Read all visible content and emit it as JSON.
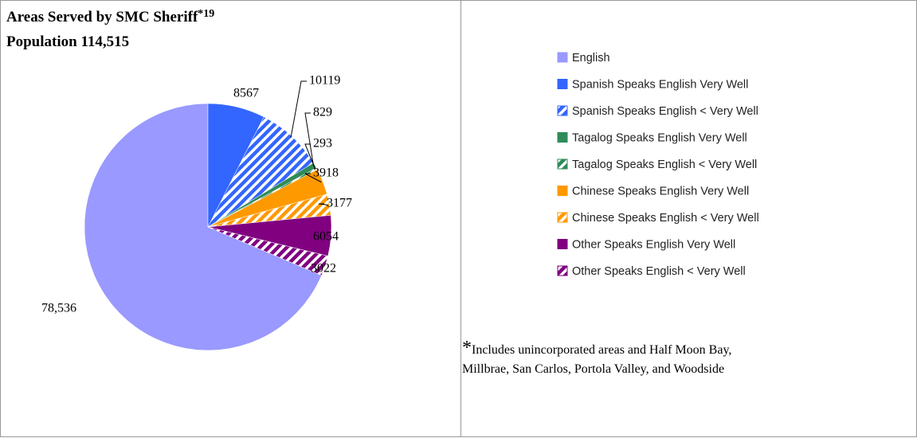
{
  "chart_data": {
    "type": "pie",
    "title": "Areas Served by SMC Sheriff",
    "title_superscript": "*19",
    "subtitle": "Population 114,515",
    "categories": [
      "English",
      "Spanish Speaks English Very Well",
      "Spanish Speaks English < Very Well",
      "Tagalog Speaks English Very Well",
      "Tagalog Speaks English < Very Well",
      "Chinese Speaks English Very Well",
      "Chinese Speaks English < Very Well",
      "Other Speaks English Very Well",
      "Other Speaks English < Very Well"
    ],
    "values": [
      78536,
      8567,
      10119,
      829,
      293,
      3918,
      3177,
      6054,
      3022
    ],
    "value_labels": [
      "78,536",
      "8567",
      "10119",
      "829",
      "293",
      "3918",
      "3177",
      "6054",
      "3022"
    ],
    "colors": [
      "#9999ff",
      "#3366ff",
      "#3366ff",
      "#2e8b57",
      "#2e8b57",
      "#ff9900",
      "#ff9900",
      "#800080",
      "#800080"
    ],
    "hatched": [
      false,
      false,
      true,
      false,
      true,
      false,
      true,
      false,
      true
    ],
    "legend": "right",
    "note_marker": "*",
    "note": "Includes unincorporated areas and Half Moon Bay, Millbrae, San Carlos, Portola Valley, and Woodside"
  }
}
